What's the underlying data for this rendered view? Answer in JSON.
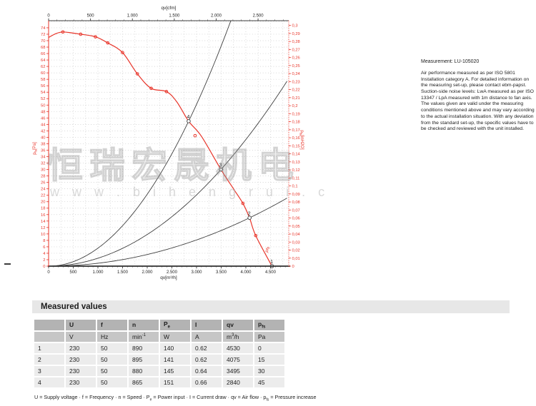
{
  "watermark": {
    "cjk": "恒瑞宏晟机电",
    "url_text": "w w w . b i h e n g r u i . c"
  },
  "side_note": {
    "title": "Measurement: LU-105020",
    "body": "Air performance measured as per ISO 5801 Installation category A. For detailed information on the measuring set-up, please contact ebm-papst. Suction-side noise levels: LwA measured as per ISO 13347 / LpA measured with 1m distance to fan axis. The values given are valid under the measuring conditions mentioned above and may vary according to the actual installation situation. With any deviation from the standard set-up, the specific values have to be checked and reviewed with the unit installed."
  },
  "measured_values": {
    "heading": "Measured values",
    "columns_html": [
      "",
      "U",
      "f",
      "n",
      "P<sub>e</sub>",
      "I",
      "qv",
      "p<sub>fs</sub>"
    ],
    "units_html": [
      "",
      "V",
      "Hz",
      "min<sup>-1</sup>",
      "W",
      "A",
      "m<sup>3</sup>/h",
      "Pa"
    ],
    "rows": [
      [
        "1",
        "230",
        "50",
        "890",
        "140",
        "0.62",
        "4530",
        "0"
      ],
      [
        "2",
        "230",
        "50",
        "895",
        "141",
        "0.62",
        "4075",
        "15"
      ],
      [
        "3",
        "230",
        "50",
        "880",
        "145",
        "0.64",
        "3495",
        "30"
      ],
      [
        "4",
        "230",
        "50",
        "865",
        "151",
        "0.66",
        "2840",
        "45"
      ]
    ],
    "legend_html": "U = Supply voltage &middot; f = Frequency &middot; n = Speed &middot; P<sub>e</sub> = Power input &middot; I = Current draw &middot; qv = Air flow &middot; p<sub>fs</sub> = Pressure increase"
  },
  "chart_data": {
    "type": "line",
    "title": "",
    "colors": {
      "red": "#e8352a",
      "dark": "#3f3f3f",
      "grid": "#c4c4c4"
    },
    "axes": {
      "top": {
        "label": "qv[cfm]",
        "min": 0,
        "max": 2866,
        "tick_step": 500,
        "minor_step": 100,
        "thousands_dot": true
      },
      "bottom": {
        "label": "qv[m³/h]",
        "min": 0,
        "max": 4870,
        "tick_step": 500,
        "minor_step": 100,
        "thousands_dot": true
      },
      "left": {
        "label_parts": [
          [
            "p",
            0
          ],
          [
            "fs",
            1
          ],
          [
            "[Pa]",
            0
          ]
        ],
        "min": 0,
        "max": 76.2,
        "tick_step": 2,
        "tick_max": 74
      },
      "right": {
        "label_parts": [
          [
            "p",
            0
          ],
          [
            "fs",
            1
          ],
          [
            "[inH2O]",
            0
          ]
        ],
        "min": 0,
        "max": 0.3059,
        "tick_step": 0.01,
        "tick_max": 0.3,
        "decimal_comma": true
      }
    },
    "grid": {
      "h_step_pa": 2,
      "v_step_m3h": 250
    },
    "fan_curve": {
      "name": "pfs",
      "points": [
        [
          0,
          71
        ],
        [
          150,
          72.2
        ],
        [
          290,
          72.7
        ],
        [
          470,
          72.4
        ],
        [
          650,
          72
        ],
        [
          950,
          71.2
        ],
        [
          1200,
          69.3
        ],
        [
          1500,
          66.3
        ],
        [
          1800,
          59.7
        ],
        [
          2080,
          55.2
        ],
        [
          2390,
          54.2
        ],
        [
          2600,
          51
        ],
        [
          2840,
          45
        ],
        [
          3100,
          40.3
        ],
        [
          3495,
          30
        ],
        [
          3750,
          24
        ],
        [
          3940,
          19.5
        ],
        [
          4075,
          15
        ],
        [
          4200,
          9.5
        ],
        [
          4530,
          0
        ]
      ],
      "marker_points": [
        [
          290,
          72.7
        ],
        [
          650,
          72
        ],
        [
          950,
          71.2
        ],
        [
          1200,
          69.3
        ],
        [
          1500,
          66.3
        ],
        [
          1800,
          59.7
        ],
        [
          2080,
          55.2
        ],
        [
          2390,
          54.2
        ],
        [
          2970,
          40.5
        ],
        [
          3940,
          19.5
        ],
        [
          4200,
          9.5
        ]
      ],
      "curve_label": "pfs",
      "curve_label_at": [
        4460,
        5
      ]
    },
    "operating_points": [
      {
        "n": "1",
        "qv": 4530,
        "pfs": 0
      },
      {
        "n": "2",
        "qv": 4075,
        "pfs": 15
      },
      {
        "n": "3",
        "qv": 3495,
        "pfs": 30
      },
      {
        "n": "4",
        "qv": 2840,
        "pfs": 45
      }
    ],
    "system_curves": {
      "through": [
        {
          "qv": 2840,
          "pfs": 45
        },
        {
          "qv": 3495,
          "pfs": 30
        },
        {
          "qv": 4075,
          "pfs": 15
        }
      ]
    }
  }
}
